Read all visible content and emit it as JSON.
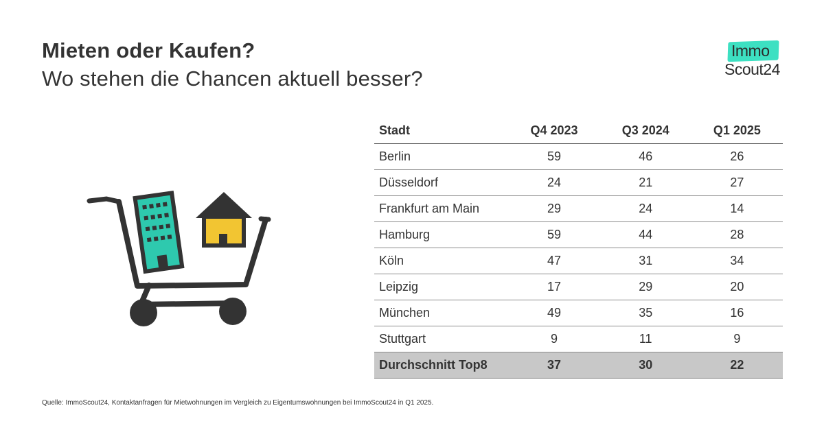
{
  "header": {
    "title": "Mieten oder Kaufen?",
    "subtitle": "Wo stehen die Chancen aktuell besser?"
  },
  "logo": {
    "top": "Immo",
    "bottom": "Scout24",
    "accent_color": "#3de0c2"
  },
  "illustration": {
    "icon": "shopping-cart-with-building-and-house",
    "colors": {
      "building": "#2ec9ae",
      "house": "#f2c532",
      "cart": "#333333"
    }
  },
  "chart_data": {
    "type": "table",
    "columns": [
      "Stadt",
      "Q4 2023",
      "Q3 2024",
      "Q1 2025"
    ],
    "rows": [
      {
        "city": "Berlin",
        "values": [
          "59",
          "46",
          "26"
        ]
      },
      {
        "city": "Düsseldorf",
        "values": [
          "24",
          "21",
          "27"
        ]
      },
      {
        "city": "Frankfurt am Main",
        "values": [
          "29",
          "24",
          "14"
        ]
      },
      {
        "city": "Hamburg",
        "values": [
          "59",
          "44",
          "28"
        ]
      },
      {
        "city": "Köln",
        "values": [
          "47",
          "31",
          "34"
        ]
      },
      {
        "city": "Leipzig",
        "values": [
          "17",
          "29",
          "20"
        ]
      },
      {
        "city": "München",
        "values": [
          "49",
          "35",
          "16"
        ]
      },
      {
        "city": "Stuttgart",
        "values": [
          "9",
          "11",
          "9"
        ]
      }
    ],
    "summary": {
      "city": "Durchschnitt Top8",
      "values": [
        "37",
        "30",
        "22"
      ],
      "highlight_color": "#c8c8c8"
    }
  },
  "footer": {
    "source": "Quelle: ImmoScout24, Kontaktanfragen für  Mietwohnungen im Vergleich zu  Eigentumswohnungen bei ImmoScout24 in Q1 2025."
  }
}
